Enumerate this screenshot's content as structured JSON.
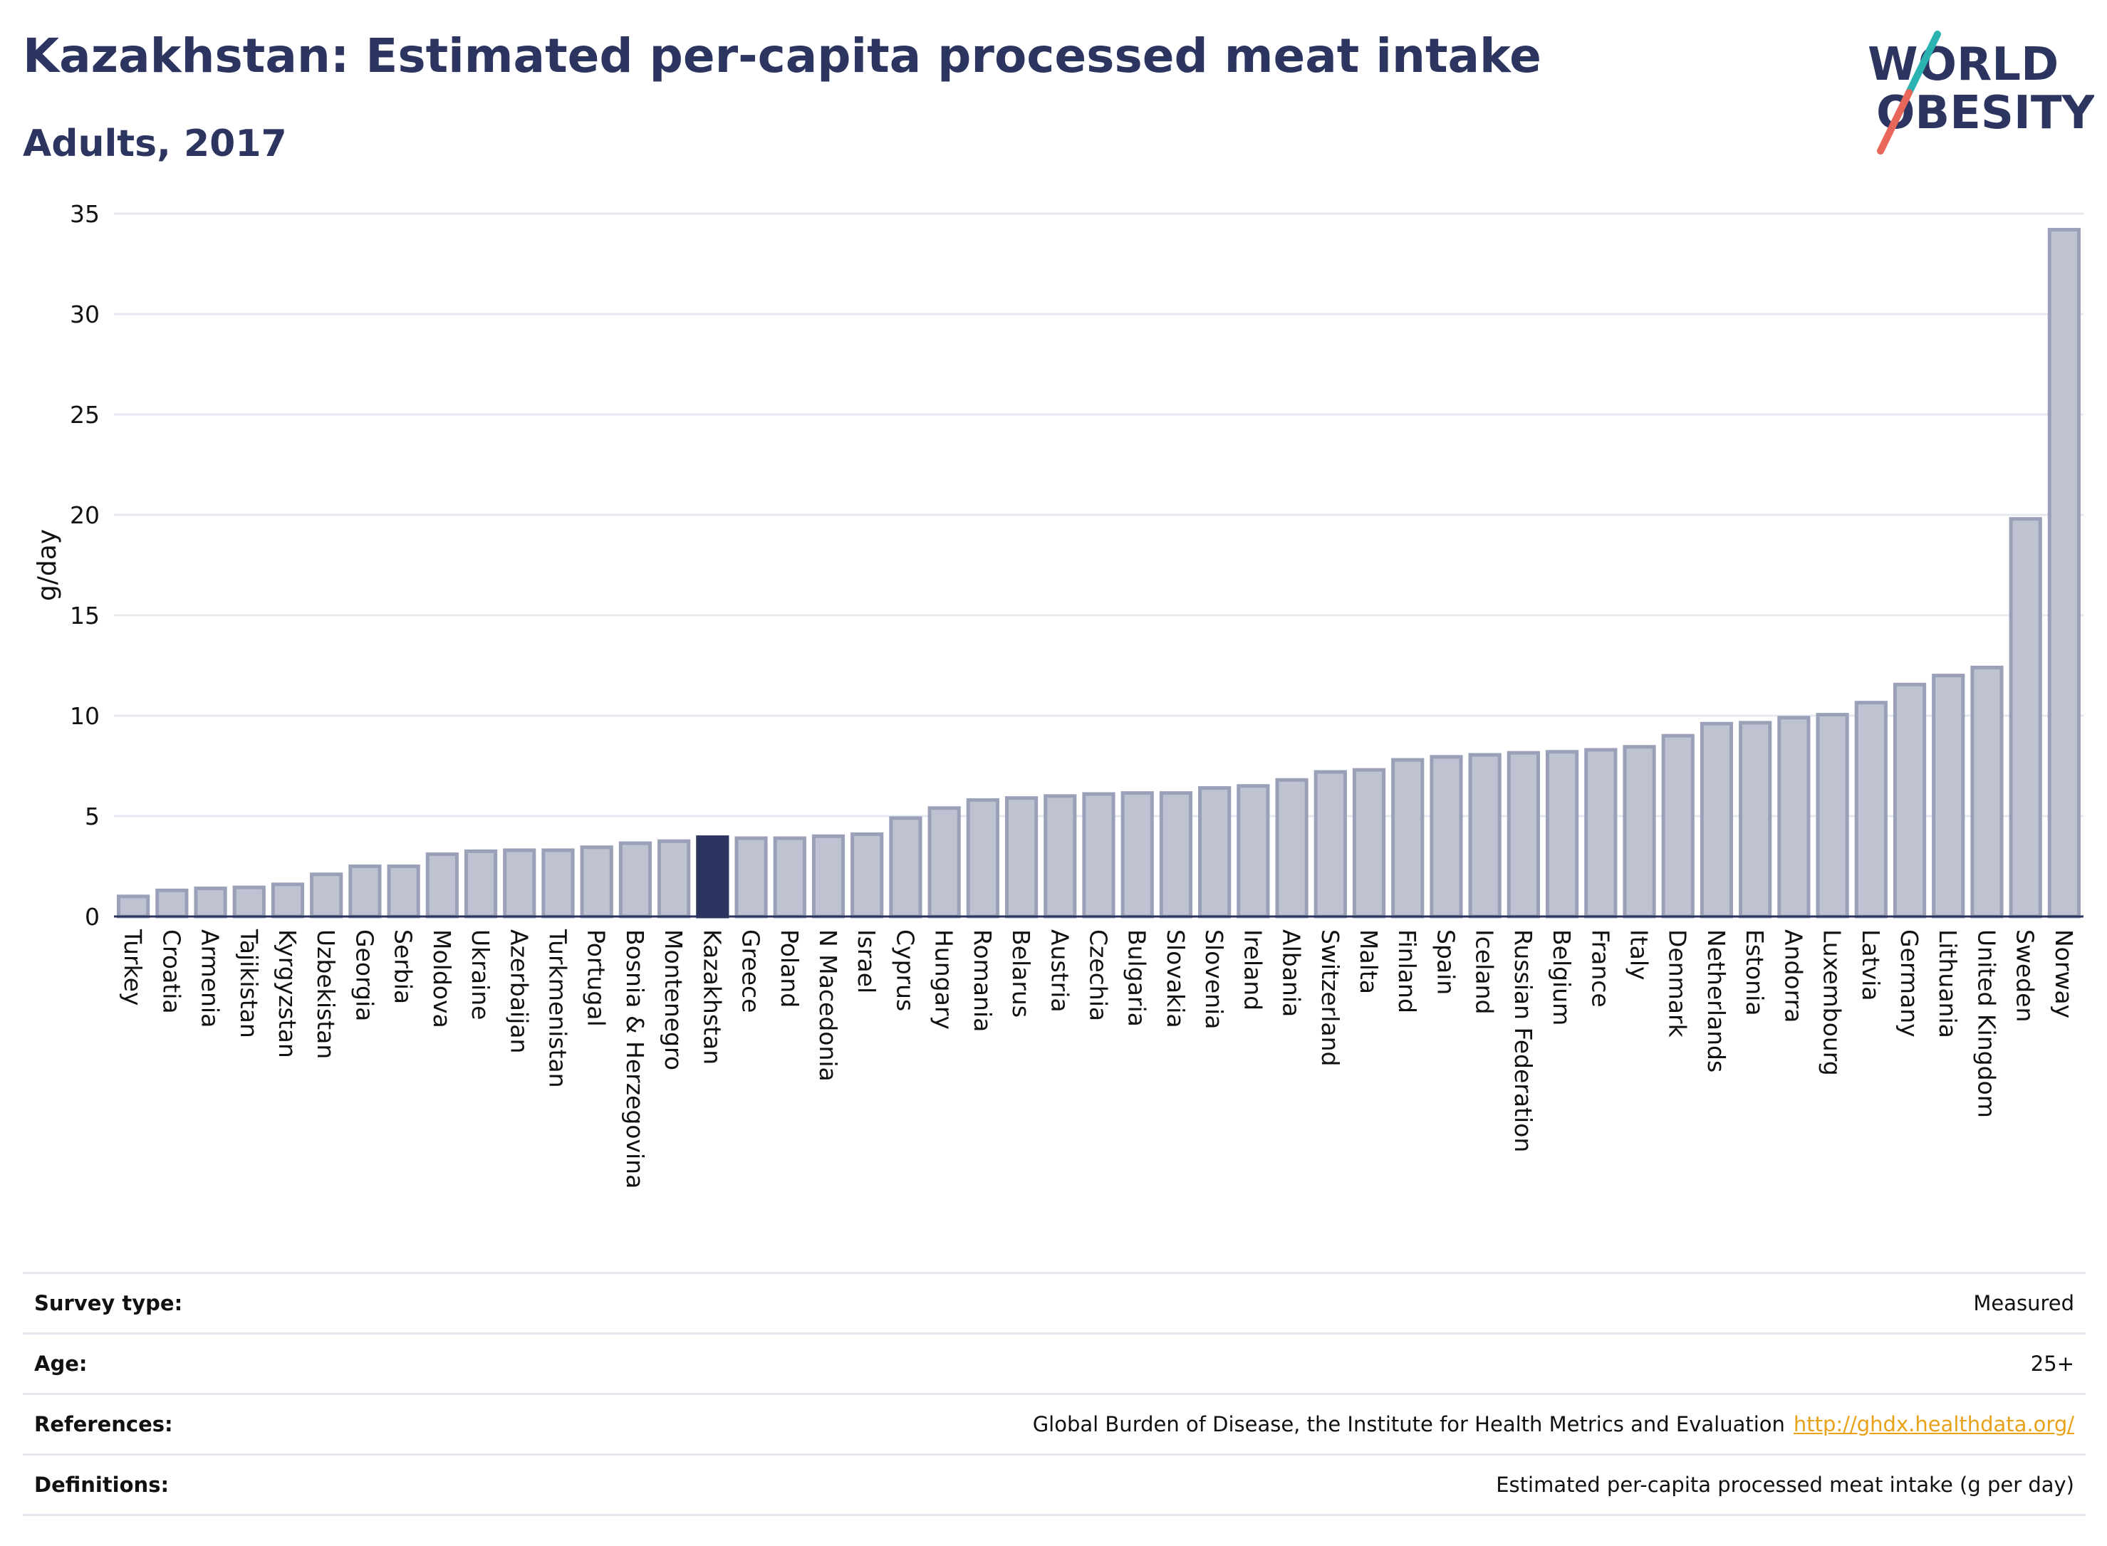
{
  "header": {
    "title": "Kazakhstan: Estimated per-capita processed meat intake",
    "subtitle": "Adults, 2017"
  },
  "logo": {
    "line1": "WORLD",
    "line2": "OBESITY",
    "colors": {
      "text": "#2b3560",
      "slash_teal": "#2ab3b1",
      "slash_coral": "#e8665a"
    }
  },
  "colors": {
    "bar": "#bfc3d1",
    "bar_stroke": "#9aa0b8",
    "highlight": "#2b3560",
    "grid": "#e6e8ef",
    "axis": "#2b3560",
    "link": "#e8a21a"
  },
  "chart_data": {
    "type": "bar",
    "ylabel": "g/day",
    "ylim": [
      0,
      35
    ],
    "yticks": [
      0,
      5,
      10,
      15,
      20,
      25,
      30,
      35
    ],
    "grid": true,
    "highlight": "Kazakhstan",
    "categories": [
      "Turkey",
      "Croatia",
      "Armenia",
      "Tajikistan",
      "Kyrgyzstan",
      "Uzbekistan",
      "Georgia",
      "Serbia",
      "Moldova",
      "Ukraine",
      "Azerbaijan",
      "Turkmenistan",
      "Portugal",
      "Bosnia & Herzegovina",
      "Montenegro",
      "Kazakhstan",
      "Greece",
      "Poland",
      "N Macedonia",
      "Israel",
      "Cyprus",
      "Hungary",
      "Romania",
      "Belarus",
      "Austria",
      "Czechia",
      "Bulgaria",
      "Slovakia",
      "Slovenia",
      "Ireland",
      "Albania",
      "Switzerland",
      "Malta",
      "Finland",
      "Spain",
      "Iceland",
      "Russian Federation",
      "Belgium",
      "France",
      "Italy",
      "Denmark",
      "Netherlands",
      "Estonia",
      "Andorra",
      "Luxembourg",
      "Latvia",
      "Germany",
      "Lithuania",
      "United Kingdom",
      "Sweden",
      "Norway"
    ],
    "values": [
      1.0,
      1.3,
      1.4,
      1.45,
      1.6,
      2.1,
      2.5,
      2.5,
      3.1,
      3.25,
      3.3,
      3.3,
      3.45,
      3.65,
      3.75,
      3.95,
      3.9,
      3.9,
      4.0,
      4.1,
      4.9,
      5.4,
      5.8,
      5.9,
      6.0,
      6.1,
      6.15,
      6.15,
      6.4,
      6.5,
      6.8,
      7.2,
      7.3,
      7.8,
      7.95,
      8.05,
      8.15,
      8.2,
      8.3,
      8.45,
      9.0,
      9.6,
      9.65,
      9.9,
      10.05,
      10.65,
      11.55,
      12.0,
      12.4,
      19.8,
      34.2
    ]
  },
  "info": {
    "survey_type": {
      "label": "Survey type:",
      "value": "Measured"
    },
    "age": {
      "label": "Age:",
      "value": "25+"
    },
    "references": {
      "label": "References:",
      "value": "Global Burden of Disease, the Institute for Health Metrics and Evaluation",
      "link": "http://ghdx.healthdata.org/"
    },
    "definitions": {
      "label": "Definitions:",
      "value": "Estimated per-capita processed meat intake (g per day)"
    }
  }
}
